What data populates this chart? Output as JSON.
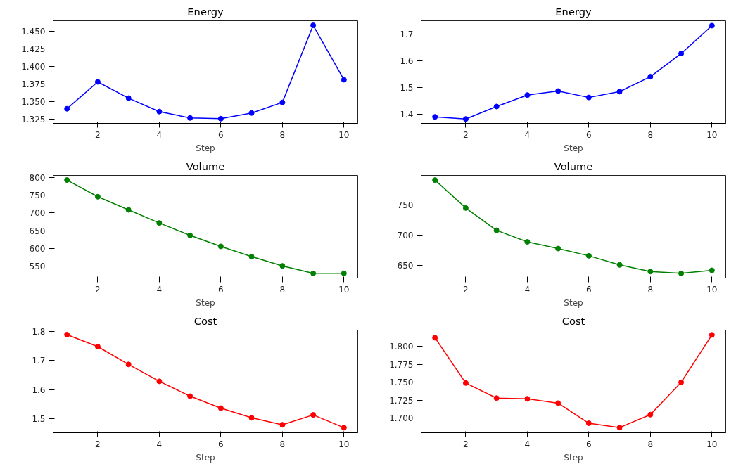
{
  "chart_data": [
    {
      "type": "line",
      "title": "Energy",
      "xlabel": "Step",
      "x": [
        1,
        2,
        3,
        4,
        5,
        6,
        7,
        8,
        9,
        10
      ],
      "series": [
        {
          "color": "#0000ff",
          "values": [
            1.34,
            1.378,
            1.355,
            1.336,
            1.327,
            1.326,
            1.334,
            1.349,
            1.458,
            1.381
          ]
        }
      ],
      "xlim": [
        0.55,
        10.45
      ],
      "xticks": [
        2,
        4,
        6,
        8,
        10
      ],
      "ylim": [
        1.3193,
        1.4645
      ],
      "yticks": [
        1.325,
        {
          "value": 1.35,
          "label": "1.350"
        },
        1.375,
        {
          "value": 1.4,
          "label": "1.400"
        },
        1.425,
        {
          "value": 1.45,
          "label": "1.450"
        }
      ],
      "grid": false,
      "marker": "circle",
      "line_style": "solid"
    },
    {
      "type": "line",
      "title": "Energy",
      "xlabel": "Step",
      "x": [
        1,
        2,
        3,
        4,
        5,
        6,
        7,
        8,
        9,
        10
      ],
      "series": [
        {
          "color": "#0000ff",
          "values": [
            1.39,
            1.382,
            1.429,
            1.472,
            1.487,
            1.463,
            1.485,
            1.541,
            1.628,
            1.733
          ]
        }
      ],
      "xlim": [
        0.55,
        10.45
      ],
      "xticks": [
        2,
        4,
        6,
        8,
        10
      ],
      "ylim": [
        1.3655,
        1.7514
      ],
      "yticks": [
        1.4,
        1.5,
        1.6,
        1.7
      ],
      "grid": false,
      "marker": "circle",
      "line_style": "solid"
    },
    {
      "type": "line",
      "title": "Volume",
      "xlabel": "Step",
      "x": [
        1,
        2,
        3,
        4,
        5,
        6,
        7,
        8,
        9,
        10
      ],
      "series": [
        {
          "color": "#008000",
          "values": [
            793,
            746,
            709,
            672,
            637,
            606,
            577,
            551,
            530,
            530
          ]
        }
      ],
      "xlim": [
        0.55,
        10.45
      ],
      "xticks": [
        2,
        4,
        6,
        8,
        10
      ],
      "ylim": [
        516.7,
        806
      ],
      "yticks": [
        550,
        600,
        650,
        700,
        750,
        800
      ],
      "grid": false,
      "marker": "circle",
      "line_style": "solid"
    },
    {
      "type": "line",
      "title": "Volume",
      "xlabel": "Step",
      "x": [
        1,
        2,
        3,
        4,
        5,
        6,
        7,
        8,
        9,
        10
      ],
      "series": [
        {
          "color": "#008000",
          "values": [
            791,
            745,
            708,
            689,
            678,
            666,
            651,
            640,
            637,
            642
          ]
        }
      ],
      "xlim": [
        0.55,
        10.45
      ],
      "xticks": [
        2,
        4,
        6,
        8,
        10
      ],
      "ylim": [
        629.3,
        798.7
      ],
      "yticks": [
        650,
        700,
        750
      ],
      "grid": false,
      "marker": "circle",
      "line_style": "solid"
    },
    {
      "type": "line",
      "title": "Cost",
      "xlabel": "Step",
      "x": [
        1,
        2,
        3,
        4,
        5,
        6,
        7,
        8,
        9,
        10
      ],
      "series": [
        {
          "color": "#ff0000",
          "values": [
            1.789,
            1.748,
            1.687,
            1.629,
            1.578,
            1.537,
            1.504,
            1.48,
            1.514,
            1.47
          ]
        }
      ],
      "xlim": [
        0.55,
        10.45
      ],
      "xticks": [
        2,
        4,
        6,
        8,
        10
      ],
      "ylim": [
        1.4528,
        1.8046
      ],
      "yticks": [
        1.5,
        1.6,
        1.7,
        1.8
      ],
      "grid": false,
      "marker": "circle",
      "line_style": "solid"
    },
    {
      "type": "line",
      "title": "Cost",
      "xlabel": "Step",
      "x": [
        1,
        2,
        3,
        4,
        5,
        6,
        7,
        8,
        9,
        10
      ],
      "series": [
        {
          "color": "#ff0000",
          "values": [
            1.812,
            1.749,
            1.728,
            1.727,
            1.721,
            1.693,
            1.687,
            1.705,
            1.75,
            1.816
          ]
        }
      ],
      "xlim": [
        0.55,
        10.45
      ],
      "xticks": [
        2,
        4,
        6,
        8,
        10
      ],
      "ylim": [
        1.6798,
        1.8227
      ],
      "yticks": [
        {
          "value": 1.7,
          "label": "1.700"
        },
        1.725,
        {
          "value": 1.75,
          "label": "1.750"
        },
        1.775,
        {
          "value": 1.8,
          "label": "1.800"
        }
      ],
      "grid": false,
      "marker": "circle",
      "line_style": "solid"
    }
  ]
}
